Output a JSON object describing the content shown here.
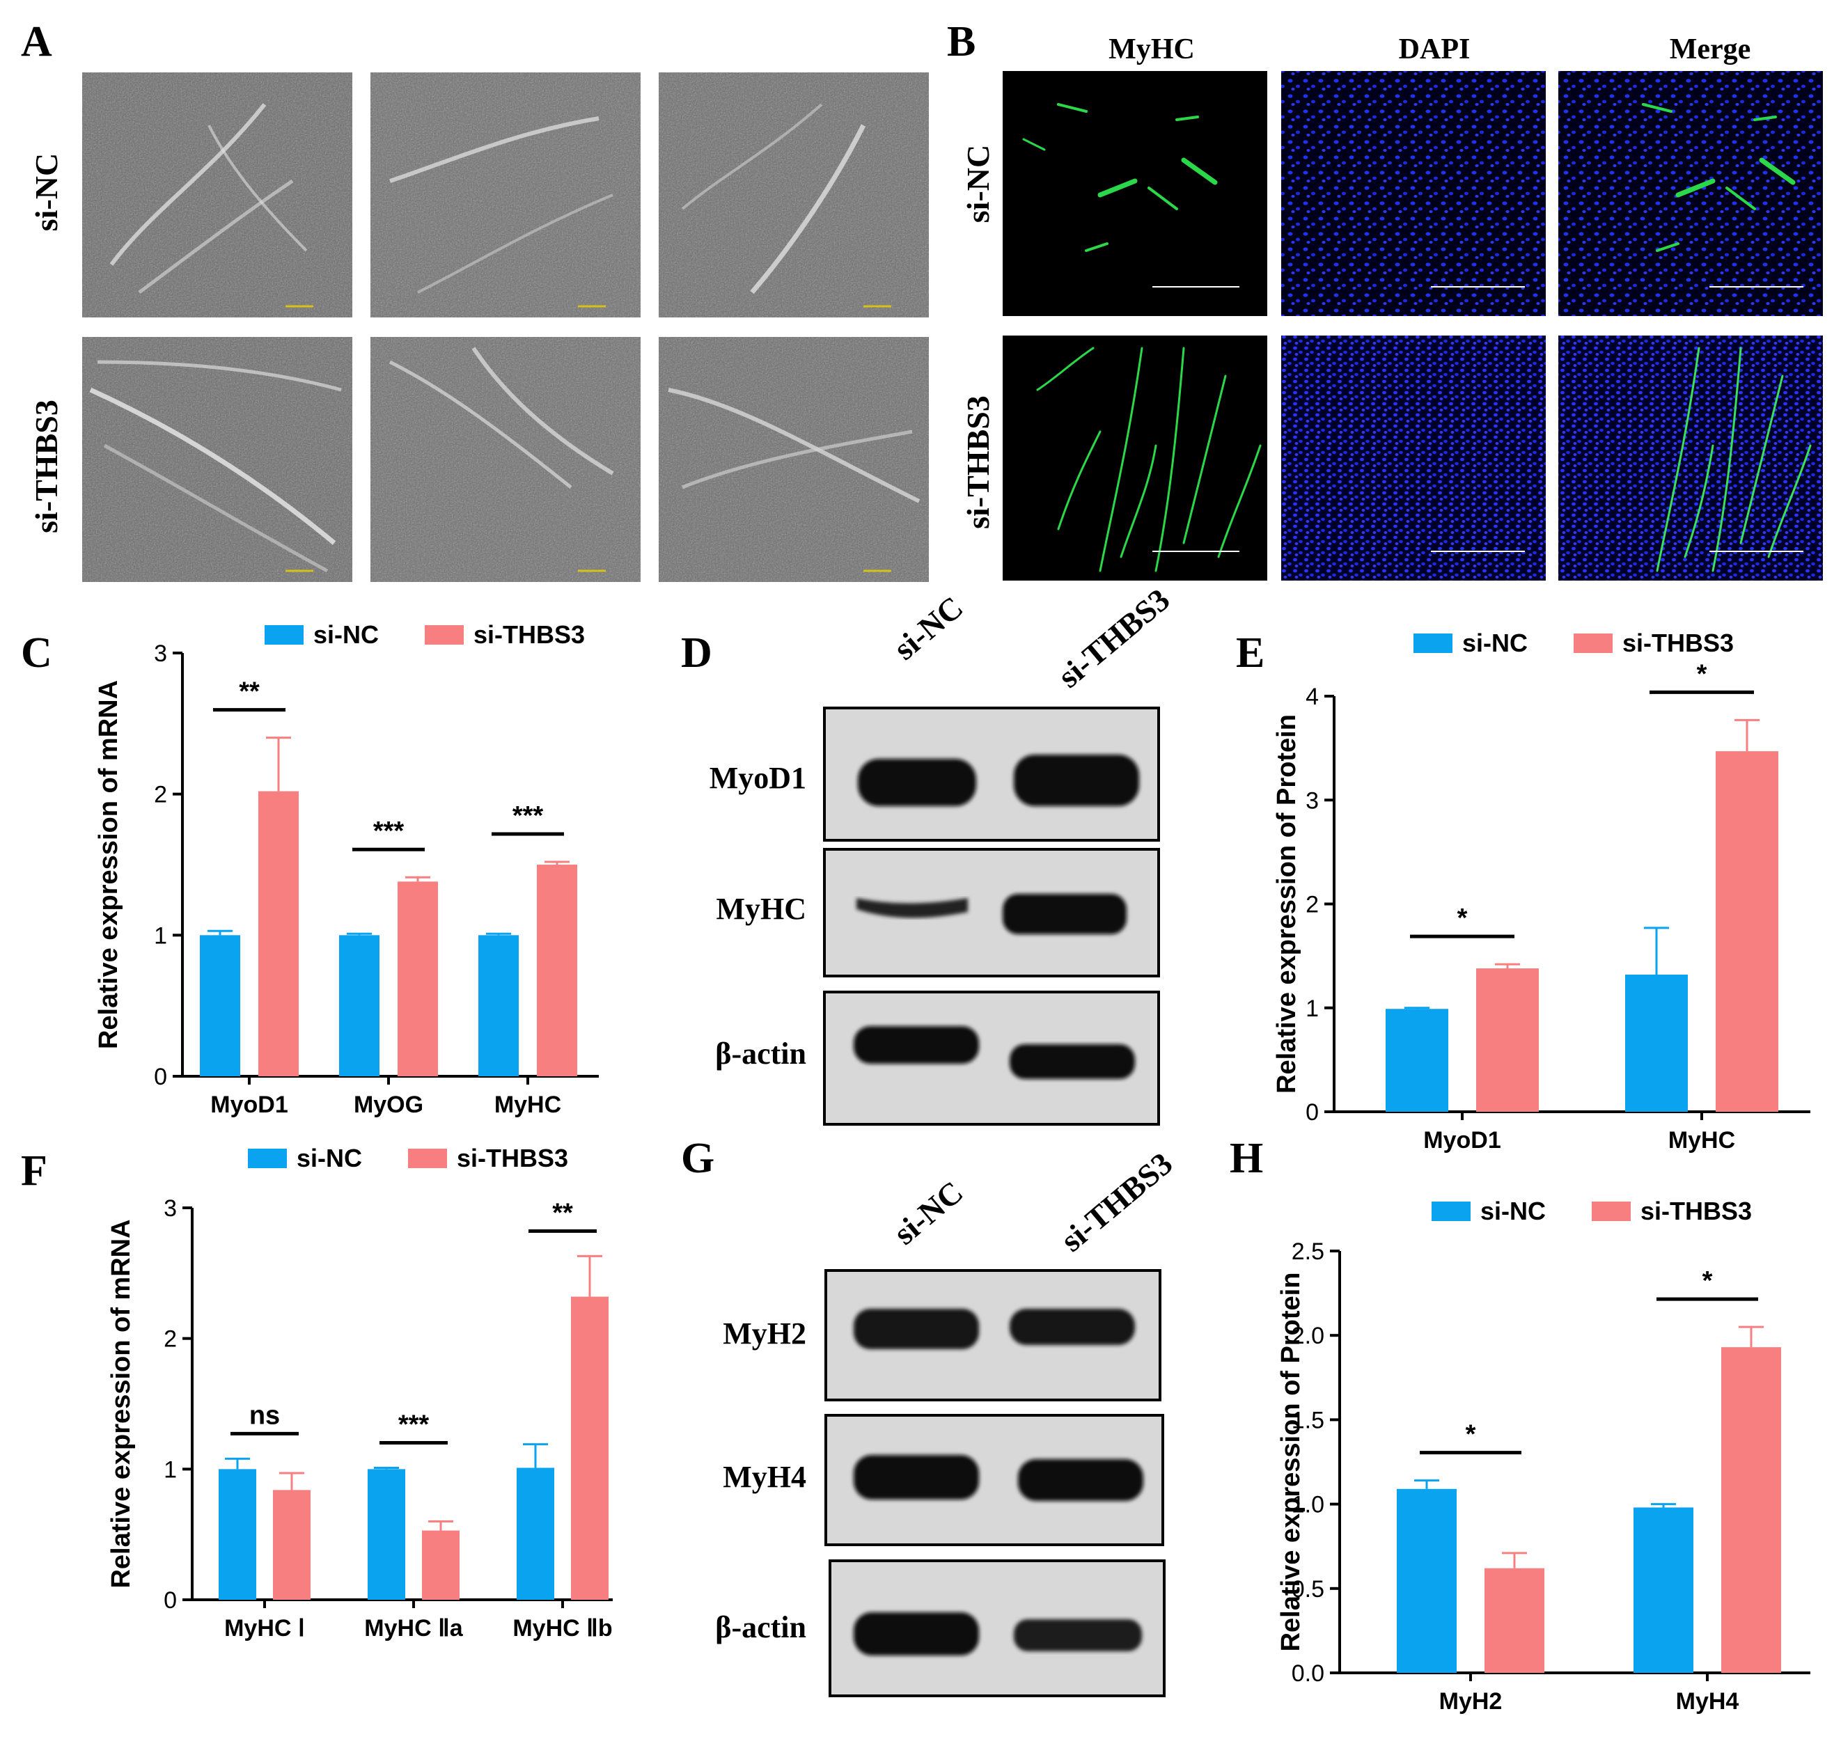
{
  "panels": {
    "A": {
      "letter": "A",
      "row_labels": [
        "si-NC",
        "si-THBS3"
      ]
    },
    "B": {
      "letter": "B",
      "col_labels": [
        "MyHC",
        "DAPI",
        "Merge"
      ],
      "row_labels": [
        "si-NC",
        "si-THBS3"
      ]
    },
    "D": {
      "letter": "D",
      "lanes": [
        "si-NC",
        "si-THBS3"
      ],
      "proteins": [
        "MyoD1",
        "MyHC",
        "β-actin"
      ]
    },
    "G": {
      "letter": "G",
      "lanes": [
        "si-NC",
        "si-THBS3"
      ],
      "proteins": [
        "MyH2",
        "MyH4",
        "β-actin"
      ]
    }
  },
  "colors": {
    "si_nc": "#0aa3f0",
    "si_thbs3": "#f87f80",
    "green": "#2ad84a",
    "blue": "#1a28e0"
  },
  "chart_data": [
    {
      "panel": "C",
      "type": "bar",
      "ylabel": "Relative expression of mRNA",
      "ylim": [
        0,
        3
      ],
      "yticks": [
        "0",
        "1",
        "2",
        "3"
      ],
      "categories": [
        "MyoD1",
        "MyOG",
        "MyHC"
      ],
      "series": [
        {
          "name": "si-NC",
          "values": [
            1.0,
            1.0,
            1.0
          ],
          "errors": [
            0.03,
            0.01,
            0.01
          ]
        },
        {
          "name": "si-THBS3",
          "values": [
            2.02,
            1.38,
            1.5
          ],
          "errors": [
            0.38,
            0.03,
            0.02
          ]
        }
      ],
      "significance": [
        "**",
        "***",
        "***"
      ],
      "legend": "top"
    },
    {
      "panel": "E",
      "type": "bar",
      "ylabel": "Relative expression of  Protein",
      "ylim": [
        0,
        4
      ],
      "yticks": [
        "0",
        "1",
        "2",
        "3",
        "4"
      ],
      "categories": [
        "MyoD1",
        "MyHC"
      ],
      "series": [
        {
          "name": "si-NC",
          "values": [
            0.99,
            1.32
          ],
          "errors": [
            0.01,
            0.45
          ]
        },
        {
          "name": "si-THBS3",
          "values": [
            1.38,
            3.47
          ],
          "errors": [
            0.04,
            0.3
          ]
        }
      ],
      "significance": [
        "*",
        "*"
      ],
      "legend": "top"
    },
    {
      "panel": "F",
      "type": "bar",
      "ylabel": "Relative expression of mRNA",
      "ylim": [
        0,
        3
      ],
      "yticks": [
        "0",
        "1",
        "2",
        "3"
      ],
      "categories": [
        "MyHC Ⅰ",
        "MyHC Ⅱa",
        "MyHC Ⅱb"
      ],
      "series": [
        {
          "name": "si-NC",
          "values": [
            1.0,
            1.0,
            1.01
          ],
          "errors": [
            0.08,
            0.01,
            0.18
          ]
        },
        {
          "name": "si-THBS3",
          "values": [
            0.84,
            0.53,
            2.32
          ],
          "errors": [
            0.13,
            0.07,
            0.31
          ]
        }
      ],
      "significance": [
        "ns",
        "***",
        "**"
      ],
      "legend": "top"
    },
    {
      "panel": "H",
      "type": "bar",
      "ylabel": "Relative expression of  Protein",
      "ylim": [
        0,
        2.5
      ],
      "yticks": [
        "0.0",
        "0.5",
        "1.0",
        "1.5",
        "2.0",
        "2.5"
      ],
      "categories": [
        "MyH2",
        "MyH4"
      ],
      "series": [
        {
          "name": "si-NC",
          "values": [
            1.09,
            0.98
          ],
          "errors": [
            0.05,
            0.02
          ]
        },
        {
          "name": "si-THBS3",
          "values": [
            0.62,
            1.93
          ],
          "errors": [
            0.09,
            0.12
          ]
        }
      ],
      "significance": [
        "*",
        "*"
      ],
      "legend": "top"
    }
  ]
}
